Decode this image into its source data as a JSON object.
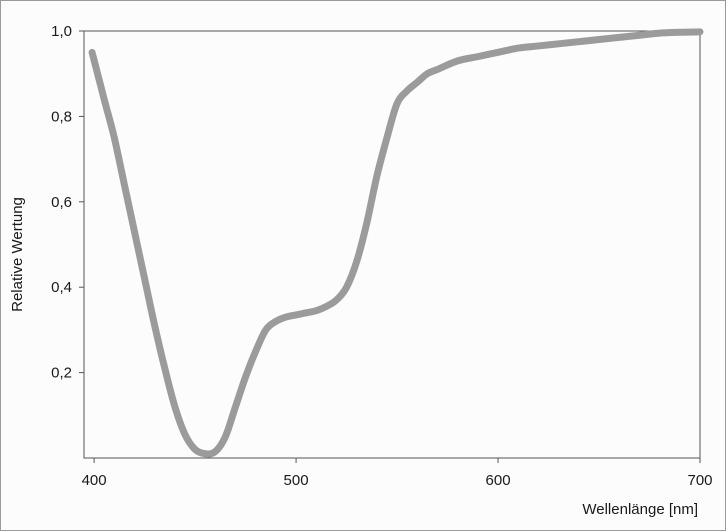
{
  "chart_data": {
    "type": "line",
    "title": "",
    "xlabel": "Wellenlänge [nm]",
    "ylabel": "Relative Wertung",
    "xlim": [
      395,
      700
    ],
    "ylim": [
      0,
      1.0
    ],
    "x_ticks": [
      {
        "value": 400,
        "label": "400"
      },
      {
        "value": 500,
        "label": "500"
      },
      {
        "value": 600,
        "label": "600"
      },
      {
        "value": 700,
        "label": "700"
      }
    ],
    "y_ticks": [
      {
        "value": 0.2,
        "label": "0,2"
      },
      {
        "value": 0.4,
        "label": "0,4"
      },
      {
        "value": 0.6,
        "label": "0,6"
      },
      {
        "value": 0.8,
        "label": "0,8"
      },
      {
        "value": 1.0,
        "label": "1,0"
      }
    ],
    "grid": false,
    "series": [
      {
        "color": "#9b9b9b",
        "points": [
          [
            399,
            0.95
          ],
          [
            405,
            0.84
          ],
          [
            410,
            0.75
          ],
          [
            415,
            0.64
          ],
          [
            420,
            0.53
          ],
          [
            425,
            0.42
          ],
          [
            430,
            0.31
          ],
          [
            435,
            0.21
          ],
          [
            440,
            0.12
          ],
          [
            445,
            0.055
          ],
          [
            450,
            0.02
          ],
          [
            455,
            0.01
          ],
          [
            460,
            0.015
          ],
          [
            465,
            0.05
          ],
          [
            470,
            0.12
          ],
          [
            475,
            0.19
          ],
          [
            480,
            0.25
          ],
          [
            485,
            0.3
          ],
          [
            490,
            0.32
          ],
          [
            495,
            0.33
          ],
          [
            500,
            0.335
          ],
          [
            505,
            0.34
          ],
          [
            510,
            0.345
          ],
          [
            515,
            0.355
          ],
          [
            520,
            0.37
          ],
          [
            525,
            0.4
          ],
          [
            530,
            0.46
          ],
          [
            535,
            0.55
          ],
          [
            540,
            0.66
          ],
          [
            545,
            0.75
          ],
          [
            550,
            0.83
          ],
          [
            555,
            0.86
          ],
          [
            560,
            0.88
          ],
          [
            565,
            0.9
          ],
          [
            570,
            0.91
          ],
          [
            580,
            0.93
          ],
          [
            590,
            0.94
          ],
          [
            600,
            0.95
          ],
          [
            610,
            0.96
          ],
          [
            620,
            0.965
          ],
          [
            630,
            0.97
          ],
          [
            640,
            0.975
          ],
          [
            650,
            0.98
          ],
          [
            660,
            0.985
          ],
          [
            670,
            0.99
          ],
          [
            680,
            0.995
          ],
          [
            690,
            0.997
          ],
          [
            700,
            0.998
          ]
        ]
      }
    ]
  }
}
